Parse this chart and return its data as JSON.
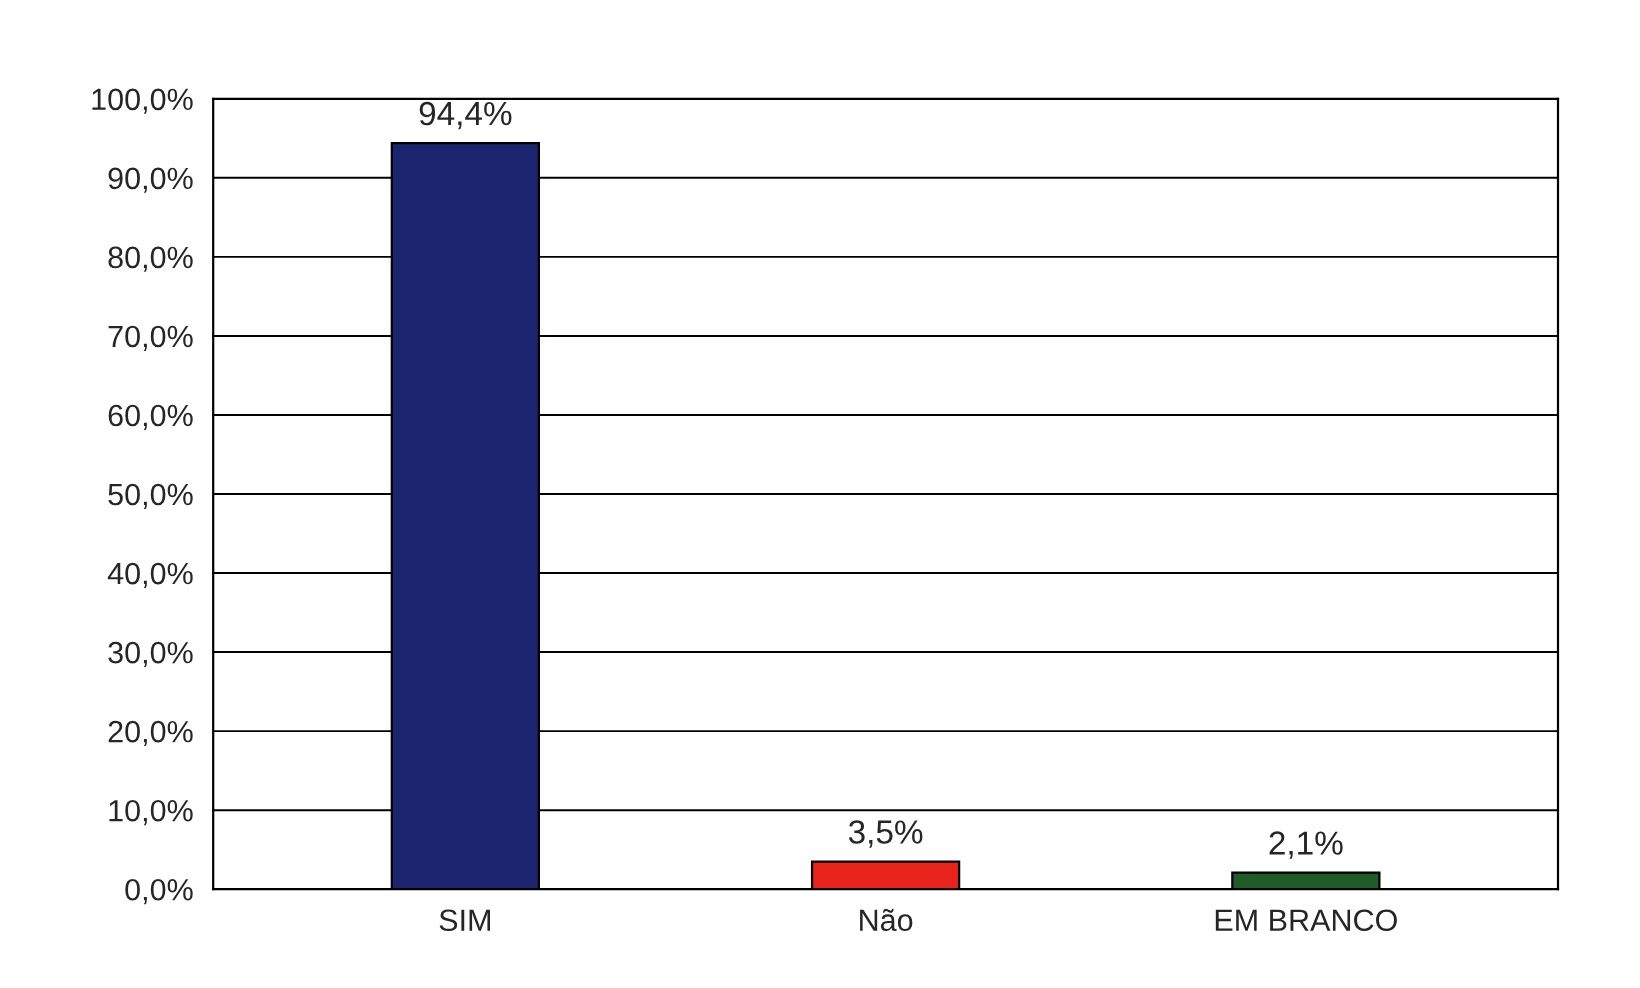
{
  "chart_data": {
    "type": "bar",
    "categories": [
      "SIM",
      "Não",
      "EM BRANCO"
    ],
    "values": [
      94.4,
      3.5,
      2.1
    ],
    "colors": [
      "#1c2470",
      "#e8231c",
      "#1f5c2a"
    ],
    "value_labels": [
      "94,4%",
      "3,5%",
      "2,1%"
    ],
    "ylim": [
      0,
      100
    ],
    "yticks": [
      {
        "value": 0,
        "label": "0,0%"
      },
      {
        "value": 10,
        "label": "10,0%"
      },
      {
        "value": 20,
        "label": "20,0%"
      },
      {
        "value": 30,
        "label": "30,0%"
      },
      {
        "value": 40,
        "label": "40,0%"
      },
      {
        "value": 50,
        "label": "50,0%"
      },
      {
        "value": 60,
        "label": "60,0%"
      },
      {
        "value": 70,
        "label": "70,0%"
      },
      {
        "value": 80,
        "label": "80,0%"
      },
      {
        "value": 90,
        "label": "90,0%"
      },
      {
        "value": 100,
        "label": "100,0%"
      }
    ],
    "grid": "y"
  }
}
